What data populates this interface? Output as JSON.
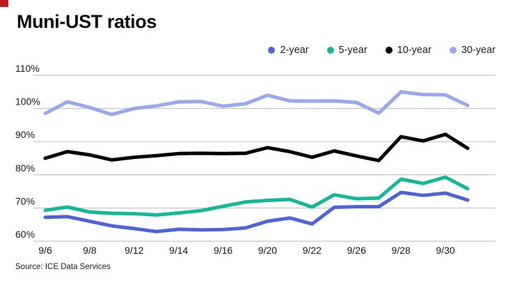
{
  "title": "Muni-UST ratios",
  "source": "Source: ICE Data Services",
  "brand": {
    "corner_color": "#c11b22"
  },
  "axis_color": "#b9b9b9",
  "tick_text_color": "#161616",
  "chart_data": {
    "type": "line",
    "title": "Muni-UST ratios",
    "xlabel": "",
    "ylabel": "",
    "ylim": [
      60,
      110
    ],
    "yticks": [
      60,
      70,
      80,
      90,
      100,
      110
    ],
    "ytick_suffix": "%",
    "grid": "horizontal",
    "legend_position": "top-right",
    "x": [
      "9/6",
      "9/7",
      "9/8",
      "9/9",
      "9/12",
      "9/13",
      "9/14",
      "9/15",
      "9/16",
      "9/19",
      "9/20",
      "9/21",
      "9/22",
      "9/23",
      "9/26",
      "9/27",
      "9/28",
      "9/29",
      "9/30",
      "10/3"
    ],
    "x_labels_shown": [
      "9/6",
      "9/8",
      "9/12",
      "9/14",
      "9/16",
      "9/20",
      "9/22",
      "9/26",
      "9/28",
      "9/30"
    ],
    "series": [
      {
        "name": "2-year",
        "color": "#4e62d9",
        "values": [
          67.2,
          67.4,
          66.0,
          64.6,
          63.8,
          62.9,
          63.6,
          63.4,
          63.5,
          64.0,
          66.0,
          67.0,
          65.2,
          70.2,
          70.4,
          70.4,
          74.7,
          73.8,
          74.5,
          72.4
        ]
      },
      {
        "name": "5-year",
        "color": "#10b998",
        "values": [
          69.3,
          70.3,
          68.8,
          68.4,
          68.3,
          67.9,
          68.5,
          69.2,
          70.5,
          71.8,
          72.3,
          72.6,
          70.3,
          74.0,
          72.8,
          73.0,
          78.7,
          77.4,
          79.3,
          75.8
        ]
      },
      {
        "name": "10-year",
        "color": "#000000",
        "values": [
          85.0,
          87.0,
          86.0,
          84.5,
          85.3,
          85.8,
          86.4,
          86.5,
          86.4,
          86.5,
          88.2,
          87.0,
          85.3,
          87.2,
          85.7,
          84.3,
          91.5,
          90.2,
          92.2,
          88.0
        ]
      },
      {
        "name": "30-year",
        "color": "#98a7ef",
        "values": [
          98.5,
          102.0,
          100.3,
          98.2,
          100.0,
          100.8,
          102.0,
          102.1,
          100.7,
          101.4,
          104.0,
          102.3,
          102.2,
          102.3,
          101.8,
          98.6,
          105.0,
          104.2,
          104.1,
          100.9
        ]
      }
    ]
  }
}
